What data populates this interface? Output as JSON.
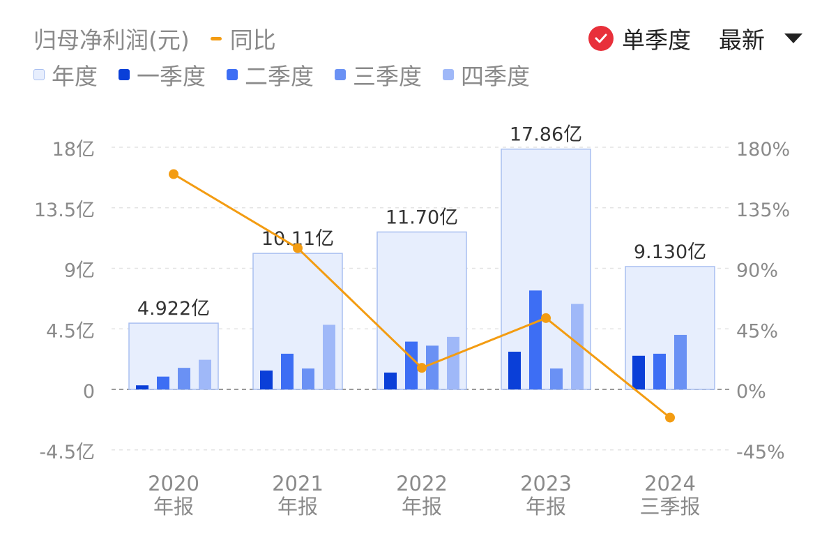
{
  "legend": {
    "metric_title": "归母净利润(元)",
    "yoy_label": "同比",
    "year_label": "年度",
    "q1_label": "一季度",
    "q2_label": "二季度",
    "q3_label": "三季度",
    "q4_label": "四季度"
  },
  "controls": {
    "single_quarter_label": "单季度",
    "single_quarter_checked": true,
    "period_select_value": "最新",
    "check_icon": "check-icon",
    "dropdown_icon": "caret-down-icon"
  },
  "colors": {
    "year_fill": "#e7eefd",
    "year_border": "#a9bff0",
    "q1": "#0a3fd8",
    "q2": "#3d6ef4",
    "q3": "#6a91f4",
    "q4": "#9fb8f8",
    "yoy_line": "#f39c12",
    "checkbox": "#e8303a"
  },
  "chart_data": {
    "type": "bar",
    "categories": [
      "2020\n年报",
      "2021\n年报",
      "2022\n年报",
      "2023\n年报",
      "2024\n三季报"
    ],
    "series": [
      {
        "name": "年度",
        "values": [
          4.922,
          10.11,
          11.7,
          17.86,
          9.13
        ],
        "data_labels": [
          "4.922亿",
          "10.11亿",
          "11.70亿",
          "17.86亿",
          "9.130亿"
        ]
      },
      {
        "name": "一季度",
        "values": [
          0.3,
          1.4,
          1.25,
          2.8,
          2.5
        ]
      },
      {
        "name": "二季度",
        "values": [
          0.95,
          2.65,
          3.55,
          7.35,
          2.65
        ]
      },
      {
        "name": "三季度",
        "values": [
          1.6,
          1.55,
          3.25,
          1.55,
          4.05
        ]
      },
      {
        "name": "四季度",
        "values": [
          2.2,
          4.8,
          3.9,
          6.35,
          null
        ]
      },
      {
        "name": "同比",
        "axis": "right",
        "type": "line",
        "values": [
          160,
          105,
          16,
          53,
          -21
        ]
      }
    ],
    "y_left": {
      "ticks": [
        "18亿",
        "13.5亿",
        "9亿",
        "4.5亿",
        "0",
        "-4.5亿"
      ],
      "tick_values": [
        18,
        13.5,
        9,
        4.5,
        0,
        -4.5
      ],
      "ylim": [
        -4.5,
        18
      ]
    },
    "y_right": {
      "ticks": [
        "180%",
        "135%",
        "90%",
        "45%",
        "0%",
        "-45%"
      ],
      "tick_values": [
        180,
        135,
        90,
        45,
        0,
        -45
      ],
      "ylim": [
        -45,
        180
      ]
    },
    "grid": true
  }
}
